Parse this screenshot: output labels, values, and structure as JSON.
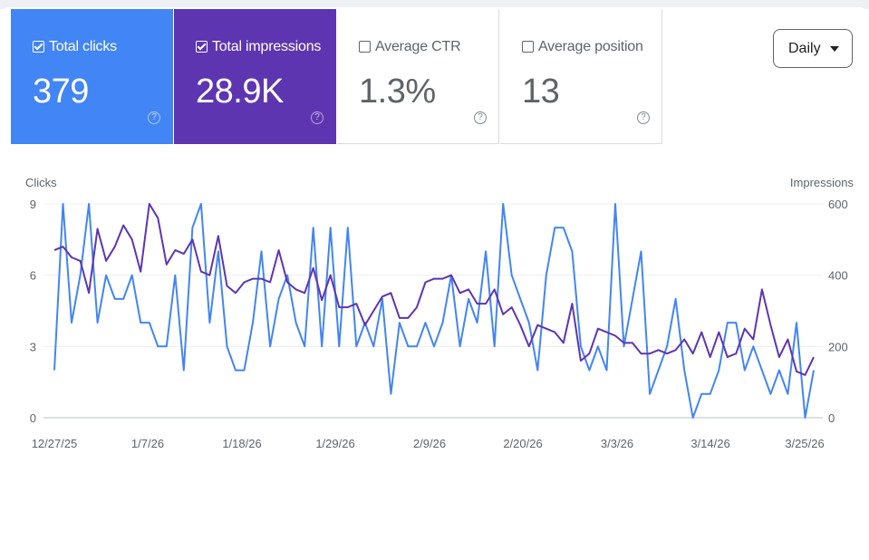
{
  "metrics": [
    {
      "label": "Total clicks",
      "value": "379",
      "checked": true,
      "color": "#4285f4"
    },
    {
      "label": "Total impressions",
      "value": "28.9K",
      "checked": true,
      "color": "#5e35b1"
    },
    {
      "label": "Average CTR",
      "value": "1.3%",
      "checked": false
    },
    {
      "label": "Average position",
      "value": "13",
      "checked": false
    }
  ],
  "help_glyph": "?",
  "granularity": {
    "selected": "Daily"
  },
  "chart_data": {
    "type": "line",
    "y_left_label": "Clicks",
    "y_right_label": "Impressions",
    "y_left_ticks": [
      "9",
      "6",
      "3",
      "0"
    ],
    "y_right_ticks": [
      "600",
      "400",
      "200",
      "0"
    ],
    "y_left_range": [
      0,
      9
    ],
    "y_right_range": [
      0,
      600
    ],
    "x_tick_labels": [
      "12/27/25",
      "1/7/26",
      "1/18/26",
      "1/29/26",
      "2/9/26",
      "2/20/26",
      "3/3/26",
      "3/14/26",
      "3/25/26"
    ],
    "grid": true,
    "series": [
      {
        "name": "Clicks",
        "axis": "left",
        "color": "#4285f4",
        "values": [
          2,
          9,
          4,
          6,
          9,
          4,
          6,
          5,
          5,
          6,
          4,
          4,
          3,
          3,
          6,
          2,
          8,
          9,
          4,
          7,
          3,
          2,
          2,
          4,
          7,
          3,
          5,
          6,
          4,
          3,
          8,
          3,
          8,
          3,
          8,
          3,
          4,
          3,
          5,
          1,
          4,
          3,
          3,
          4,
          3,
          4,
          6,
          3,
          5,
          4,
          7,
          3,
          9,
          6,
          5,
          4,
          2,
          6,
          8,
          8,
          7,
          3,
          2,
          3,
          2,
          9,
          3,
          5,
          7,
          1,
          2,
          3,
          5,
          2,
          0,
          1,
          1,
          2,
          4,
          4,
          2,
          3,
          2,
          1,
          2,
          1,
          4,
          0,
          2
        ]
      },
      {
        "name": "Impressions",
        "axis": "right",
        "color": "#5e35b1",
        "values": [
          470,
          480,
          450,
          440,
          350,
          530,
          440,
          480,
          540,
          500,
          410,
          600,
          560,
          430,
          470,
          460,
          500,
          410,
          400,
          510,
          370,
          350,
          380,
          390,
          390,
          380,
          470,
          380,
          360,
          350,
          420,
          330,
          400,
          310,
          310,
          320,
          260,
          300,
          340,
          350,
          280,
          280,
          310,
          380,
          390,
          390,
          400,
          350,
          360,
          320,
          320,
          360,
          290,
          310,
          260,
          200,
          260,
          250,
          240,
          210,
          320,
          160,
          180,
          250,
          240,
          230,
          210,
          210,
          180,
          180,
          190,
          180,
          190,
          220,
          180,
          240,
          170,
          240,
          170,
          180,
          250,
          220,
          360,
          260,
          170,
          220,
          130,
          120,
          170
        ]
      }
    ]
  }
}
